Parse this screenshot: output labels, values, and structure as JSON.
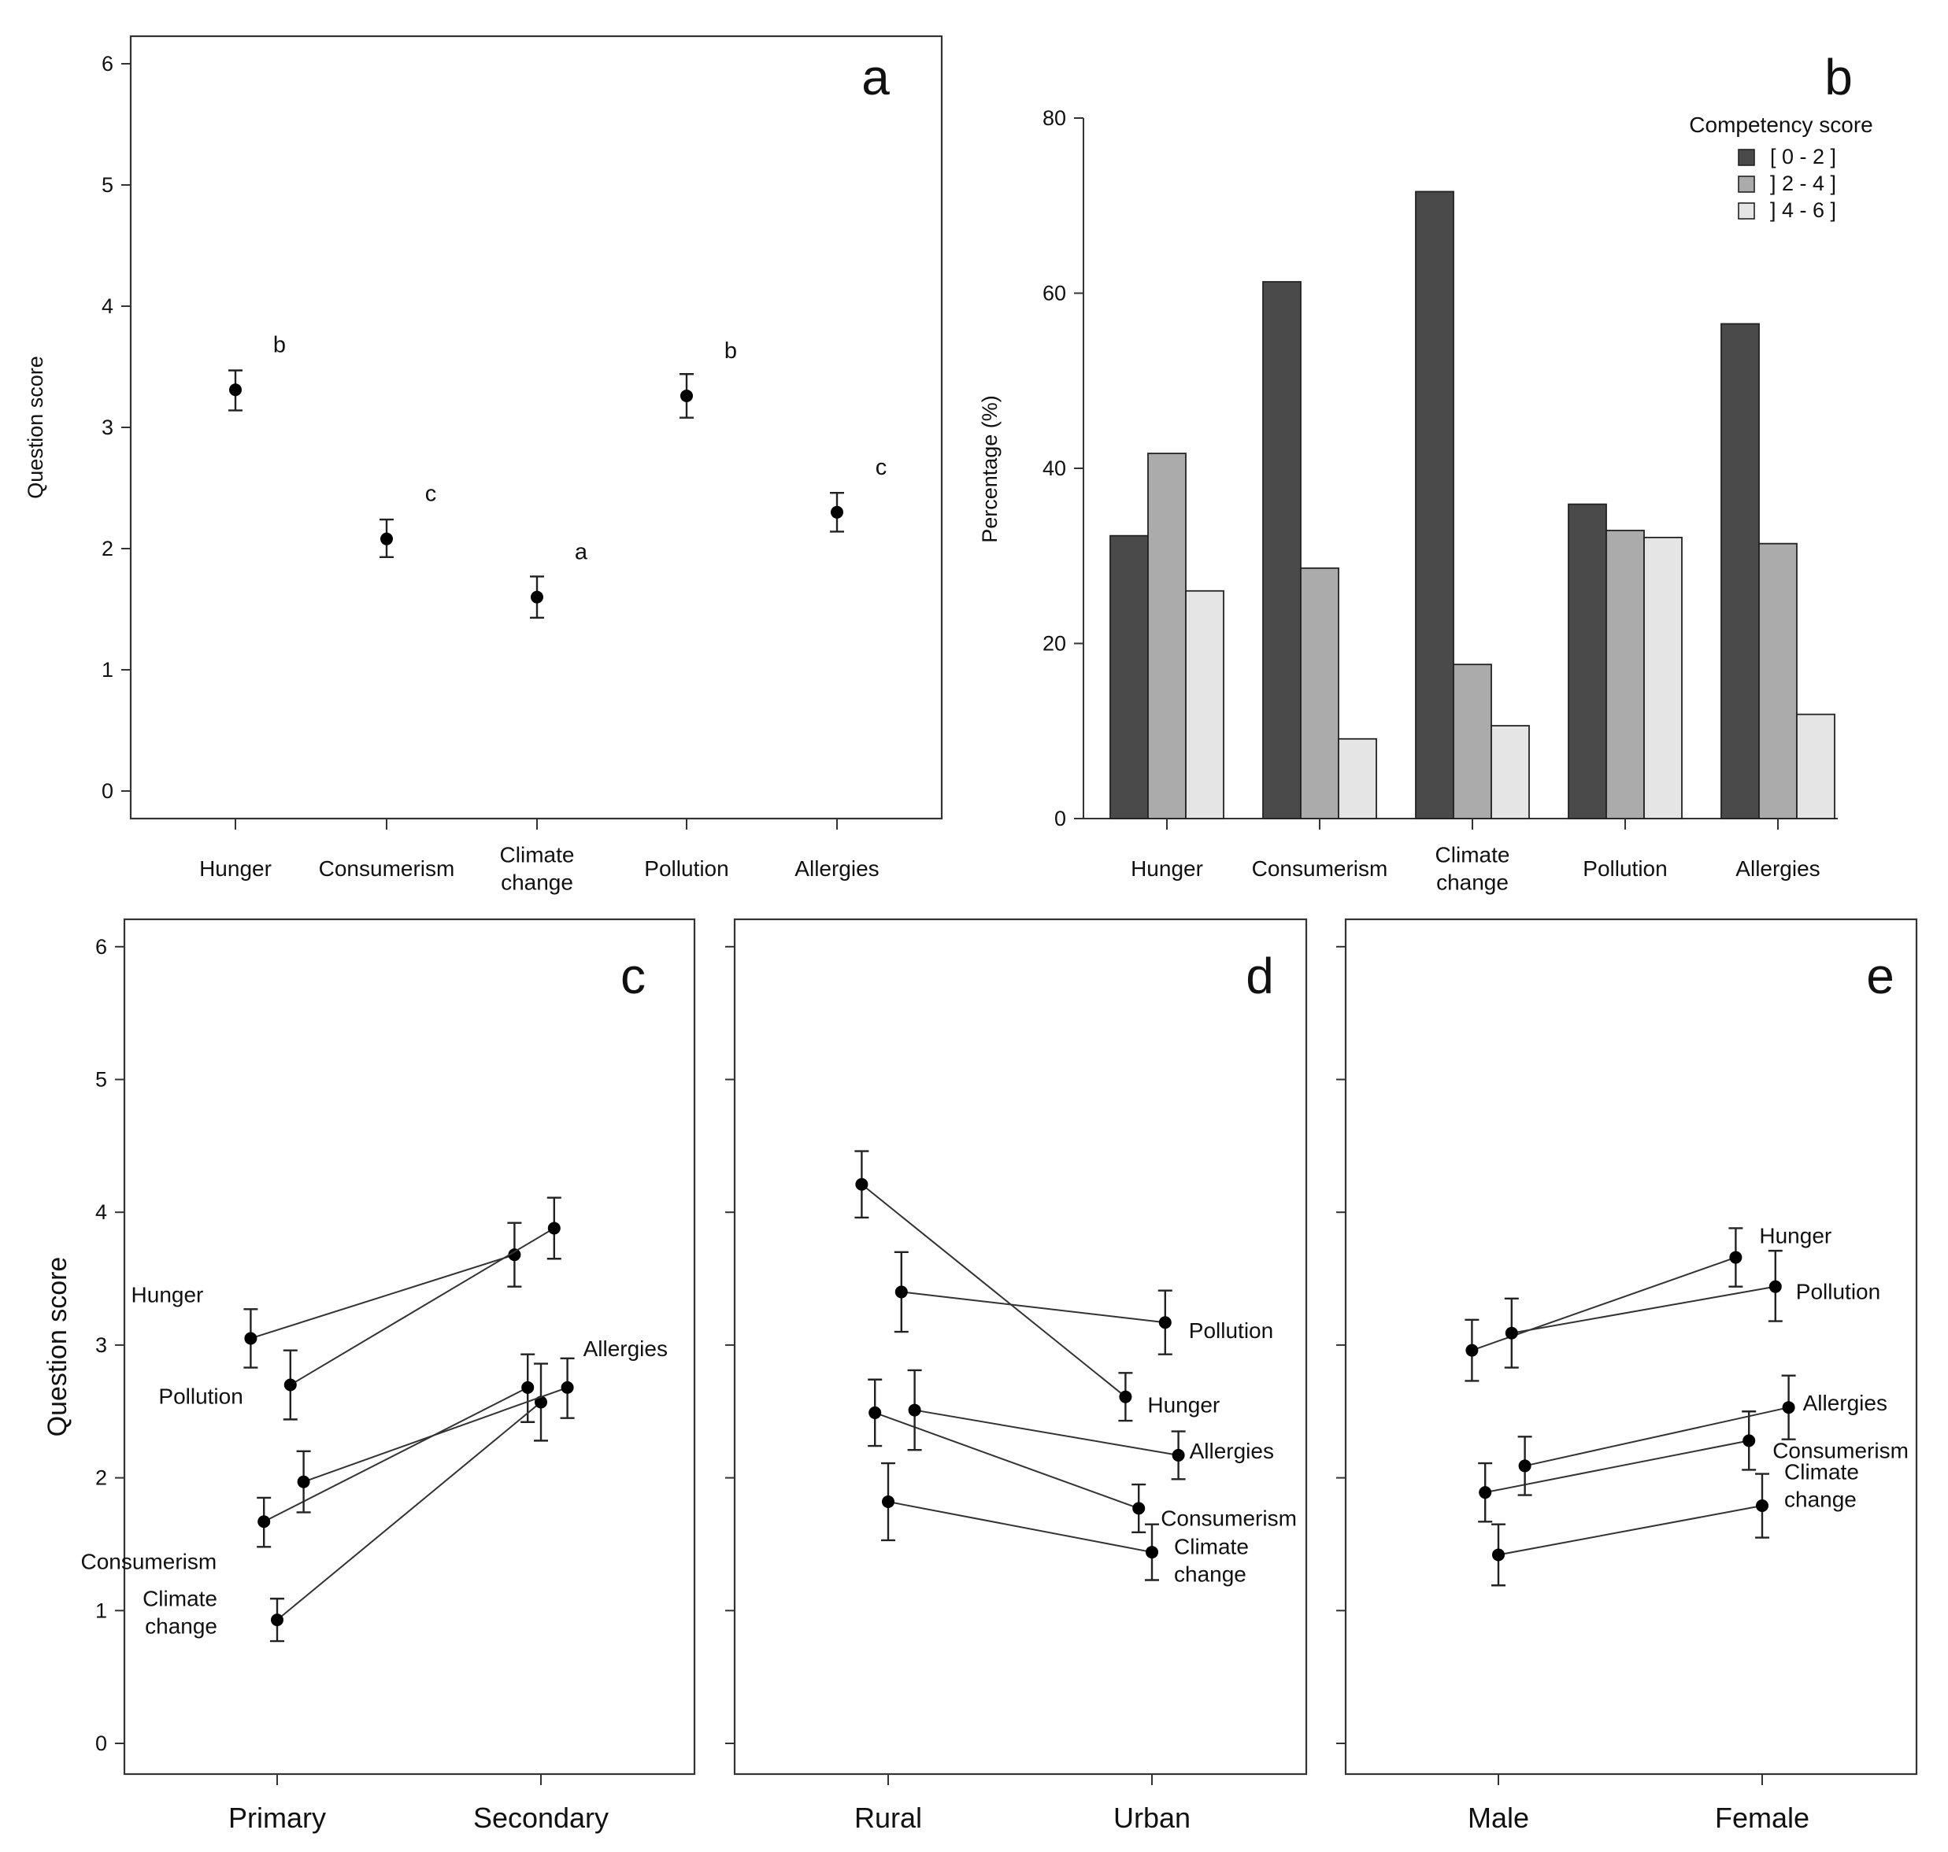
{
  "colors": {
    "bin_0_2": "#4a4a4a",
    "bin_2_4": "#ababab",
    "bin_4_6": "#e5e5e5",
    "ink": "#222222"
  },
  "chart_data": [
    {
      "panel": "a",
      "type": "scatter",
      "ylabel": "Question score",
      "ylim": [
        0,
        6
      ],
      "yticks": [
        "0",
        "1",
        "2",
        "3",
        "4",
        "5",
        "6"
      ],
      "categories": [
        [
          "Hunger"
        ],
        [
          "Consumerism"
        ],
        [
          "Climate",
          "change"
        ],
        [
          "Pollution"
        ],
        [
          "Allergies"
        ]
      ],
      "points": [
        {
          "y": 3.31,
          "lo": 3.14,
          "hi": 3.47,
          "group": "b"
        },
        {
          "y": 2.08,
          "lo": 1.93,
          "hi": 2.24,
          "group": "c"
        },
        {
          "y": 1.6,
          "lo": 1.43,
          "hi": 1.77,
          "group": "a"
        },
        {
          "y": 3.26,
          "lo": 3.08,
          "hi": 3.44,
          "group": "b"
        },
        {
          "y": 2.3,
          "lo": 2.14,
          "hi": 2.46,
          "group": "c"
        }
      ]
    },
    {
      "panel": "b",
      "type": "bar",
      "ylabel": "Percentage (%)",
      "ylim": [
        0,
        80
      ],
      "yticks": [
        "0",
        "20",
        "40",
        "60",
        "80"
      ],
      "categories": [
        [
          "Hunger"
        ],
        [
          "Consumerism"
        ],
        [
          "Climate",
          "change"
        ],
        [
          "Pollution"
        ],
        [
          "Allergies"
        ]
      ],
      "legend": {
        "title": "Competency score",
        "position": "top-right"
      },
      "series": [
        {
          "name": "[ 0 - 2 ]",
          "values": [
            32.3,
            61.3,
            71.6,
            35.9,
            56.5
          ]
        },
        {
          "name": "] 2 - 4 ]",
          "values": [
            41.7,
            28.6,
            17.6,
            32.9,
            31.4
          ]
        },
        {
          "name": "] 4 - 6 ]",
          "values": [
            26.0,
            9.1,
            10.6,
            32.1,
            11.9
          ]
        }
      ]
    },
    {
      "panel": "c",
      "type": "line",
      "ylabel": "Question score",
      "ylim": [
        0,
        6
      ],
      "yticks": [
        "0",
        "1",
        "2",
        "3",
        "4",
        "5",
        "6"
      ],
      "x_categories": [
        "Primary",
        "Secondary"
      ],
      "series": [
        {
          "name": [
            "Hunger"
          ],
          "offset": -0.4,
          "values": [
            3.05,
            3.68
          ],
          "lo": [
            2.83,
            3.44
          ],
          "hi": [
            3.27,
            3.92
          ],
          "label_at": 0
        },
        {
          "name": [
            "Pollution"
          ],
          "offset": 0.2,
          "values": [
            2.7,
            3.88
          ],
          "lo": [
            2.44,
            3.65
          ],
          "hi": [
            2.96,
            4.11
          ],
          "label_at": 0
        },
        {
          "name": [
            "Consumerism"
          ],
          "offset": -0.2,
          "values": [
            1.67,
            2.68
          ],
          "lo": [
            1.48,
            2.42
          ],
          "hi": [
            1.85,
            2.93
          ],
          "label_at": 0
        },
        {
          "name": [
            "Climate",
            "change"
          ],
          "offset": 0.0,
          "values": [
            0.93,
            2.57
          ],
          "lo": [
            0.77,
            2.28
          ],
          "hi": [
            1.09,
            2.86
          ],
          "label_at": 0
        },
        {
          "name": [
            "Allergies"
          ],
          "offset": 0.4,
          "values": [
            1.97,
            2.68
          ],
          "lo": [
            1.74,
            2.45
          ],
          "hi": [
            2.2,
            2.9
          ],
          "label_at": 1
        }
      ]
    },
    {
      "panel": "d",
      "type": "line",
      "x_categories": [
        "Rural",
        "Urban"
      ],
      "ylim": [
        0,
        6
      ],
      "series": [
        {
          "name": [
            "Hunger"
          ],
          "offset": -0.4,
          "values": [
            4.21,
            2.61
          ],
          "lo": [
            3.96,
            2.43
          ],
          "hi": [
            4.46,
            2.79
          ],
          "label_at": 1
        },
        {
          "name": [
            "Pollution"
          ],
          "offset": 0.2,
          "values": [
            3.4,
            3.17
          ],
          "lo": [
            3.1,
            2.93
          ],
          "hi": [
            3.7,
            3.41
          ],
          "label_at": 1
        },
        {
          "name": [
            "Consumerism"
          ],
          "offset": -0.2,
          "values": [
            2.49,
            1.77
          ],
          "lo": [
            2.24,
            1.59
          ],
          "hi": [
            2.74,
            1.95
          ],
          "label_at": 1
        },
        {
          "name": [
            "Climate",
            "change"
          ],
          "offset": 0.0,
          "values": [
            1.82,
            1.44
          ],
          "lo": [
            1.53,
            1.23
          ],
          "hi": [
            2.11,
            1.65
          ],
          "label_at": 1
        },
        {
          "name": [
            "Allergies"
          ],
          "offset": 0.4,
          "values": [
            2.51,
            2.17
          ],
          "lo": [
            2.21,
            1.99
          ],
          "hi": [
            2.81,
            2.35
          ],
          "label_at": 1
        }
      ]
    },
    {
      "panel": "e",
      "type": "line",
      "x_categories": [
        "Male",
        "Female"
      ],
      "ylim": [
        0,
        6
      ],
      "series": [
        {
          "name": [
            "Hunger"
          ],
          "offset": -0.4,
          "values": [
            2.96,
            3.66
          ],
          "lo": [
            2.73,
            3.44
          ],
          "hi": [
            3.19,
            3.88
          ],
          "label_at": 1
        },
        {
          "name": [
            "Pollution"
          ],
          "offset": 0.2,
          "values": [
            3.09,
            3.44
          ],
          "lo": [
            2.83,
            3.18
          ],
          "hi": [
            3.35,
            3.71
          ],
          "label_at": 1
        },
        {
          "name": [
            "Consumerism"
          ],
          "offset": -0.2,
          "values": [
            1.89,
            2.28
          ],
          "lo": [
            1.67,
            2.06
          ],
          "hi": [
            2.11,
            2.5
          ],
          "label_at": 1
        },
        {
          "name": [
            "Climate",
            "change"
          ],
          "offset": 0.0,
          "values": [
            1.42,
            1.79
          ],
          "lo": [
            1.19,
            1.55
          ],
          "hi": [
            1.65,
            2.03
          ],
          "label_at": 1
        },
        {
          "name": [
            "Allergies"
          ],
          "offset": 0.4,
          "values": [
            2.09,
            2.53
          ],
          "lo": [
            1.87,
            2.29
          ],
          "hi": [
            2.31,
            2.77
          ],
          "label_at": 1
        }
      ]
    }
  ]
}
